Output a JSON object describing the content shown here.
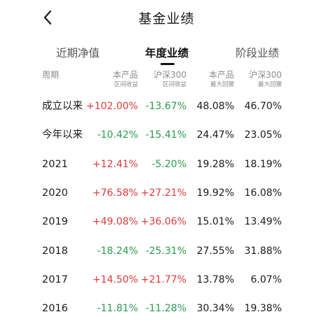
{
  "header": {
    "title": "基金业绩"
  },
  "tabs": [
    {
      "label": "近期净值",
      "active": false
    },
    {
      "label": "年度业绩",
      "active": true
    },
    {
      "label": "阶段业绩",
      "active": false
    }
  ],
  "table": {
    "headers": [
      {
        "line1": "周期",
        "line2": ""
      },
      {
        "line1": "本产品",
        "line2": "区间收益"
      },
      {
        "line1": "沪深300",
        "line2": "区间收益"
      },
      {
        "line1": "本产品",
        "line2": "最大回撤"
      },
      {
        "line1": "沪深300",
        "line2": "最大回撤"
      }
    ],
    "rows": [
      {
        "period": "成立以来",
        "fund_return": "+102.00%",
        "index_return": "-13.67%",
        "fund_drawdown": "48.08%",
        "index_drawdown": "46.70%"
      },
      {
        "period": "今年以来",
        "fund_return": "-10.42%",
        "index_return": "-15.41%",
        "fund_drawdown": "24.47%",
        "index_drawdown": "23.05%"
      },
      {
        "period": "2021",
        "fund_return": "+12.41%",
        "index_return": "-5.20%",
        "fund_drawdown": "19.28%",
        "index_drawdown": "18.19%"
      },
      {
        "period": "2020",
        "fund_return": "+76.58%",
        "index_return": "+27.21%",
        "fund_drawdown": "19.92%",
        "index_drawdown": "16.08%"
      },
      {
        "period": "2019",
        "fund_return": "+49.08%",
        "index_return": "+36.06%",
        "fund_drawdown": "15.01%",
        "index_drawdown": "13.49%"
      },
      {
        "period": "2018",
        "fund_return": "-18.24%",
        "index_return": "-25.31%",
        "fund_drawdown": "27.55%",
        "index_drawdown": "31.88%"
      },
      {
        "period": "2017",
        "fund_return": "+14.50%",
        "index_return": "+21.77%",
        "fund_drawdown": "13.78%",
        "index_drawdown": "6.07%"
      },
      {
        "period": "2016",
        "fund_return": "-11.81%",
        "index_return": "-11.28%",
        "fund_drawdown": "30.34%",
        "index_drawdown": "19.38%"
      }
    ]
  },
  "colors": {
    "positive": "#e03a3a",
    "negative": "#2a9a52",
    "text": "#1a1a1a",
    "muted": "#8a8a8a"
  },
  "icons": {
    "back": "chevron-left-icon"
  }
}
